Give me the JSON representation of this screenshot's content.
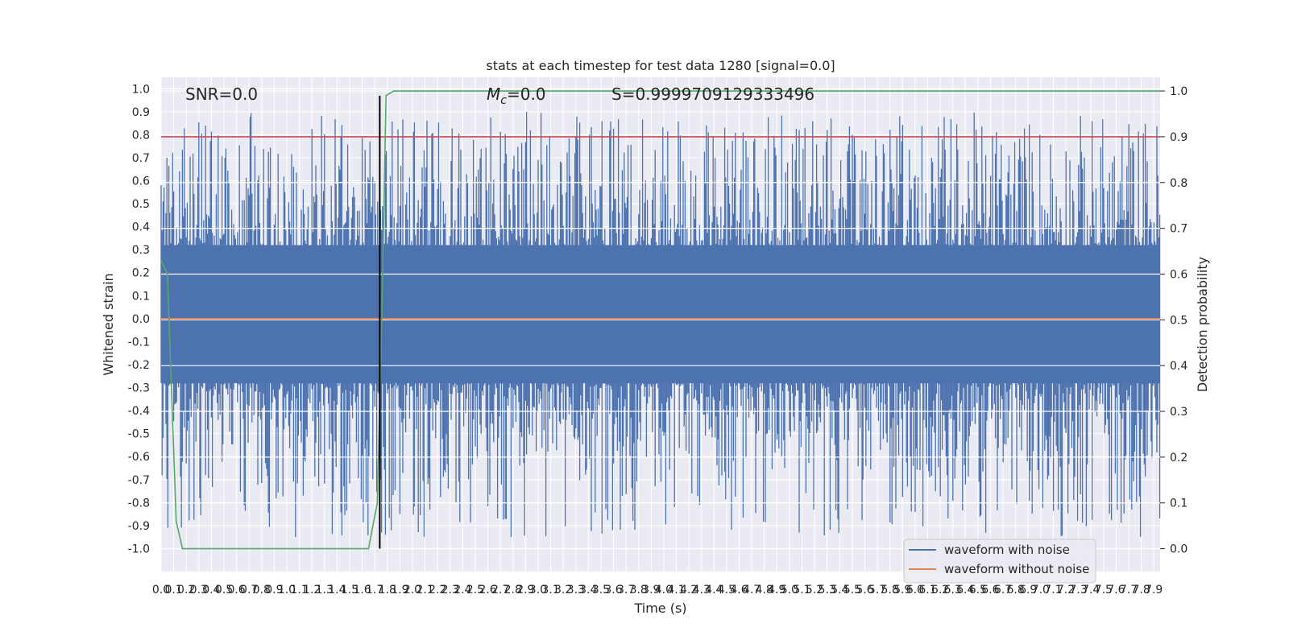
{
  "chart_data": {
    "type": "line",
    "title": "stats at each timestep for test data 1280 [signal=0.0]",
    "xlabel": "Time (s)",
    "ylabel": "Whitened strain",
    "y2label": "Detection probability",
    "xlim": [
      0.0,
      7.95
    ],
    "ylim": [
      -1.1,
      1.05
    ],
    "y2lim": [
      -0.05,
      1.03
    ],
    "x_ticks": [
      "0.0",
      "0.1",
      "0.2",
      "0.3",
      "0.4",
      "0.5",
      "0.6",
      "0.7",
      "0.8",
      "0.9",
      "1.0",
      "1.1",
      "1.2",
      "1.3",
      "1.4",
      "1.5",
      "1.6",
      "1.7",
      "1.8",
      "1.9",
      "2.0",
      "2.1",
      "2.2",
      "2.3",
      "2.4",
      "2.5",
      "2.6",
      "2.7",
      "2.8",
      "2.9",
      "3.0",
      "3.1",
      "3.2",
      "3.3",
      "3.4",
      "3.5",
      "3.6",
      "3.7",
      "3.8",
      "3.9",
      "4.0",
      "4.1",
      "4.2",
      "4.3",
      "4.4",
      "4.5",
      "4.6",
      "4.7",
      "4.8",
      "4.9",
      "5.0",
      "5.1",
      "5.2",
      "5.3",
      "5.4",
      "5.5",
      "5.6",
      "5.7",
      "5.8",
      "5.9",
      "6.0",
      "6.1",
      "6.2",
      "6.3",
      "6.4",
      "6.5",
      "6.6",
      "6.7",
      "6.8",
      "6.9",
      "7.0",
      "7.1",
      "7.2",
      "7.3",
      "7.4",
      "7.5",
      "7.6",
      "7.7",
      "7.8",
      "7.9"
    ],
    "y_ticks": [
      "1.0",
      "0.9",
      "0.8",
      "0.7",
      "0.6",
      "0.5",
      "0.4",
      "0.3",
      "0.2",
      "0.1",
      "0.0",
      "-0.1",
      "-0.2",
      "-0.3",
      "-0.4",
      "-0.5",
      "-0.6",
      "-0.7",
      "-0.8",
      "-0.9",
      "-1.0"
    ],
    "y2_ticks": [
      "1.0",
      "0.9",
      "0.8",
      "0.7",
      "0.6",
      "0.5",
      "0.4",
      "0.3",
      "0.2",
      "0.1",
      "0.0"
    ],
    "series": [
      {
        "name": "waveform with noise",
        "color": "#4c72b0",
        "axis": "left",
        "kind": "noise",
        "envelope_approx": [
          -0.95,
          0.9
        ]
      },
      {
        "name": "waveform without noise",
        "color": "#dd8452",
        "axis": "left",
        "kind": "constant",
        "value": 0.0
      },
      {
        "color": "#55a868",
        "axis": "right",
        "kind": "line",
        "x": [
          0.0,
          0.05,
          0.12,
          0.17,
          0.25,
          0.5,
          1.0,
          1.3,
          1.5,
          1.65,
          1.72,
          1.76,
          1.79,
          1.85,
          7.95
        ],
        "y": [
          0.63,
          0.6,
          0.06,
          0.0,
          0.0,
          0.0,
          0.0,
          0.0,
          0.0,
          0.0,
          0.1,
          0.55,
          0.99,
          1.0,
          1.0
        ]
      }
    ],
    "threshold_line": {
      "axis": "right",
      "value": 0.9,
      "color": "#c44e52"
    },
    "marker_line": {
      "axis": "left",
      "x": 1.74,
      "y_range": [
        -1.0,
        0.97
      ],
      "color": "#000000"
    },
    "annotations": {
      "snr": "SNR=0.0",
      "mc_symbol": "M",
      "mc_subscript": "c",
      "mc_value": "=0.0",
      "s_value": "S=0.9999709129333496"
    },
    "grid": true,
    "legend_position": "lower right"
  }
}
